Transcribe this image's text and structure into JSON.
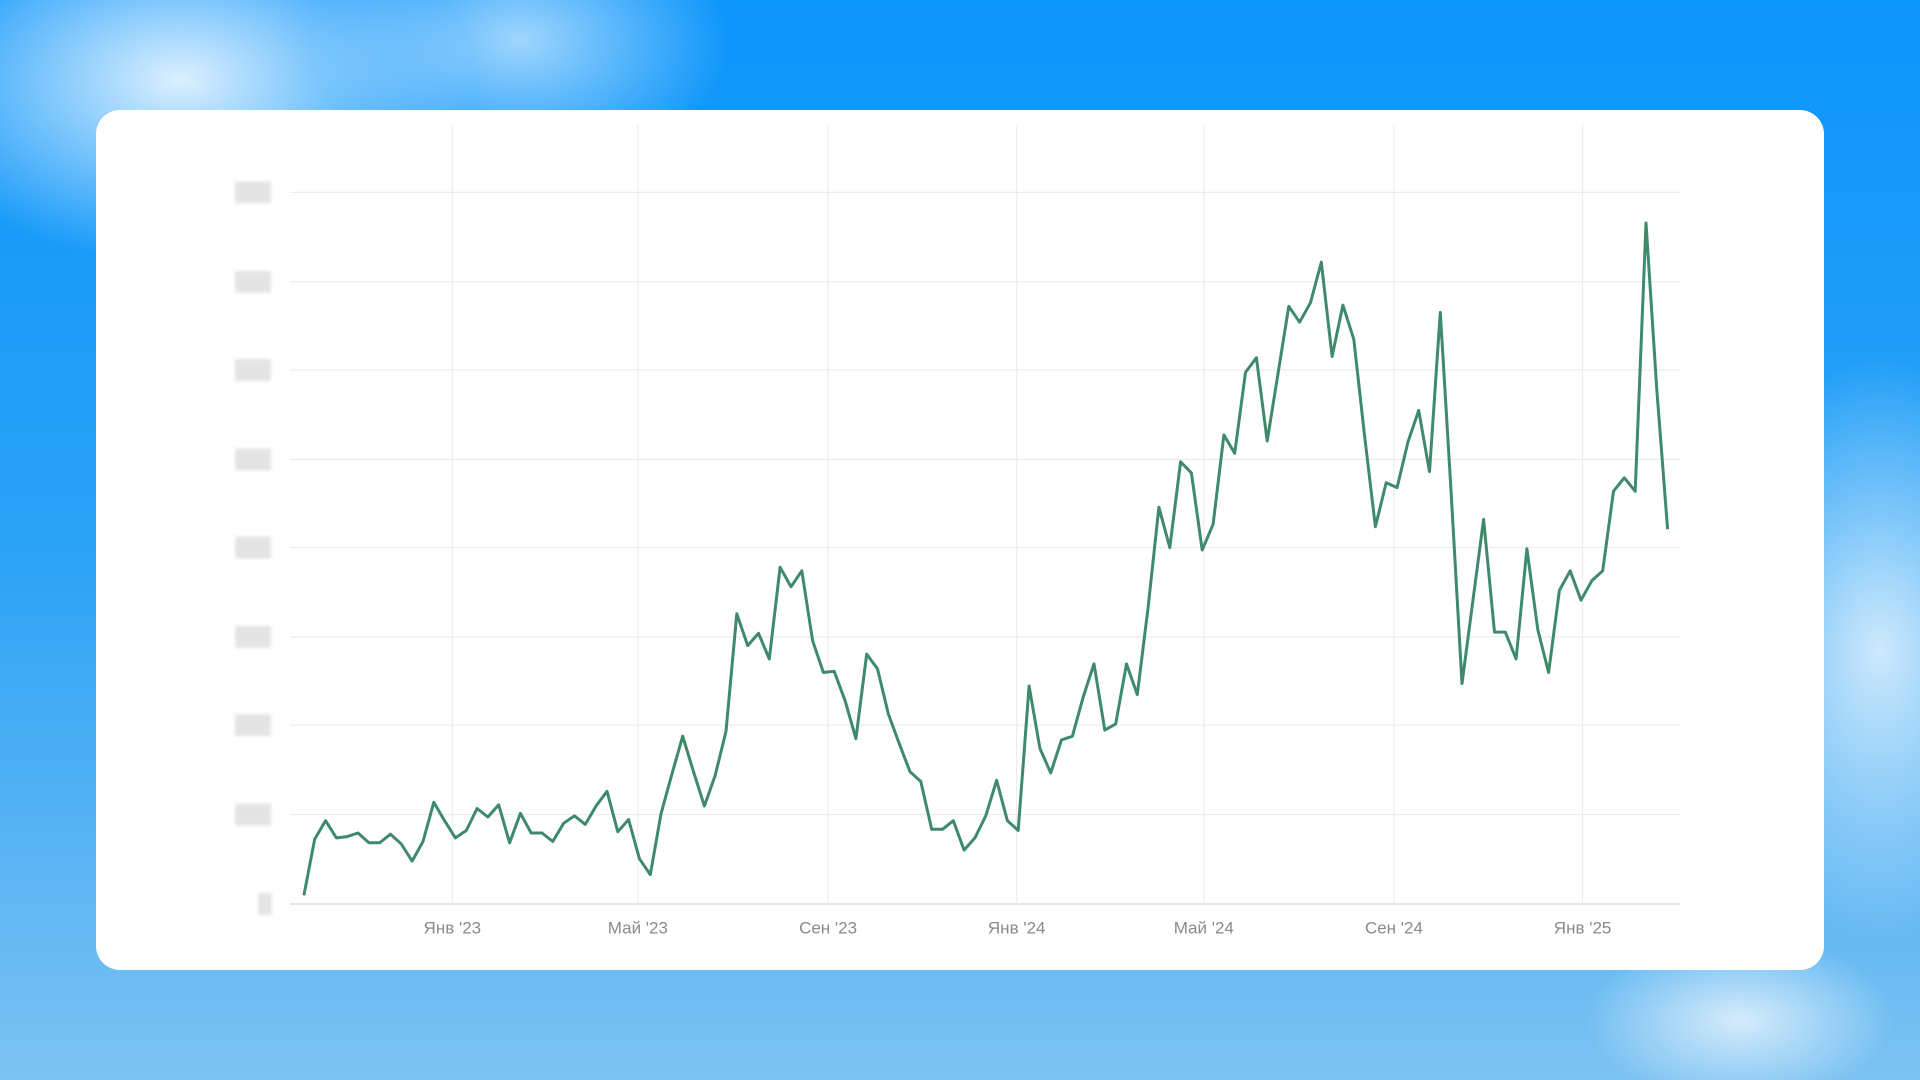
{
  "chart_data": {
    "type": "line",
    "x": [
      -96,
      -89,
      -82,
      -75,
      -68,
      -61,
      -54,
      -47,
      -40,
      -33,
      -26,
      -19,
      -12,
      -5,
      2,
      9,
      16,
      23,
      30,
      37,
      44,
      51,
      58,
      65,
      72,
      79,
      86,
      93,
      100,
      107,
      114,
      121,
      128,
      135,
      142,
      149,
      156,
      163,
      170,
      177,
      184,
      191,
      198,
      205,
      212,
      219,
      226,
      233,
      240,
      247,
      254,
      261,
      268,
      275,
      282,
      289,
      296,
      303,
      310,
      317,
      324,
      331,
      338,
      345,
      352,
      359,
      366,
      373,
      380,
      387,
      394,
      401,
      408,
      415,
      422,
      429,
      436,
      443,
      450,
      457,
      464,
      471,
      478,
      485,
      492,
      499,
      506,
      513,
      520,
      527,
      534,
      541,
      548,
      555,
      562,
      569,
      576,
      583,
      590,
      597,
      604,
      611,
      618,
      625,
      632,
      639,
      646,
      653,
      660,
      667,
      674,
      681,
      688,
      695,
      702,
      709,
      716,
      723,
      730,
      737,
      744,
      751,
      758,
      765,
      772,
      779,
      786
    ],
    "series": [
      {
        "color": "#3f8a6c",
        "values": [
          7,
          53,
          68,
          54,
          55,
          58,
          50,
          50,
          57,
          49,
          35,
          51,
          83,
          68,
          54,
          60,
          78,
          71,
          81,
          50,
          74,
          58,
          58,
          51,
          66,
          72,
          65,
          80,
          92,
          59,
          69,
          37,
          24,
          74,
          106,
          137,
          108,
          80,
          105,
          141,
          237,
          211,
          221,
          200,
          275,
          259,
          272,
          215,
          189,
          190,
          166,
          135,
          204,
          192,
          155,
          131,
          108,
          100,
          61,
          61,
          68,
          44,
          54,
          72,
          101,
          68,
          60,
          178,
          127,
          107,
          134,
          137,
          169,
          196,
          142,
          147,
          196,
          171,
          242,
          324,
          291,
          361,
          352,
          289,
          310,
          383,
          368,
          434,
          446,
          378,
          433,
          488,
          475,
          491,
          524,
          447,
          489,
          461,
          382,
          308,
          344,
          340,
          377,
          403,
          353,
          483,
          335,
          180,
          247,
          314,
          222,
          222,
          200,
          290,
          224,
          189,
          256,
          272,
          248,
          264,
          272,
          337,
          348,
          337,
          556,
          420,
          306
        ]
      }
    ],
    "xlim": [
      -105,
      794
    ],
    "xticks": [
      {
        "value": 0,
        "label": "Янв '23"
      },
      {
        "value": 120,
        "label": "Май '23"
      },
      {
        "value": 243,
        "label": "Сен '23"
      },
      {
        "value": 365,
        "label": "Янв '24"
      },
      {
        "value": 486,
        "label": "Май '24"
      },
      {
        "value": 609,
        "label": "Сен '24"
      },
      {
        "value": 731,
        "label": "Янв '25"
      }
    ],
    "ylim": [
      0,
      636
    ],
    "yticks": [
      0,
      73,
      146,
      218,
      291,
      363,
      436,
      508,
      581
    ],
    "grid": true
  }
}
